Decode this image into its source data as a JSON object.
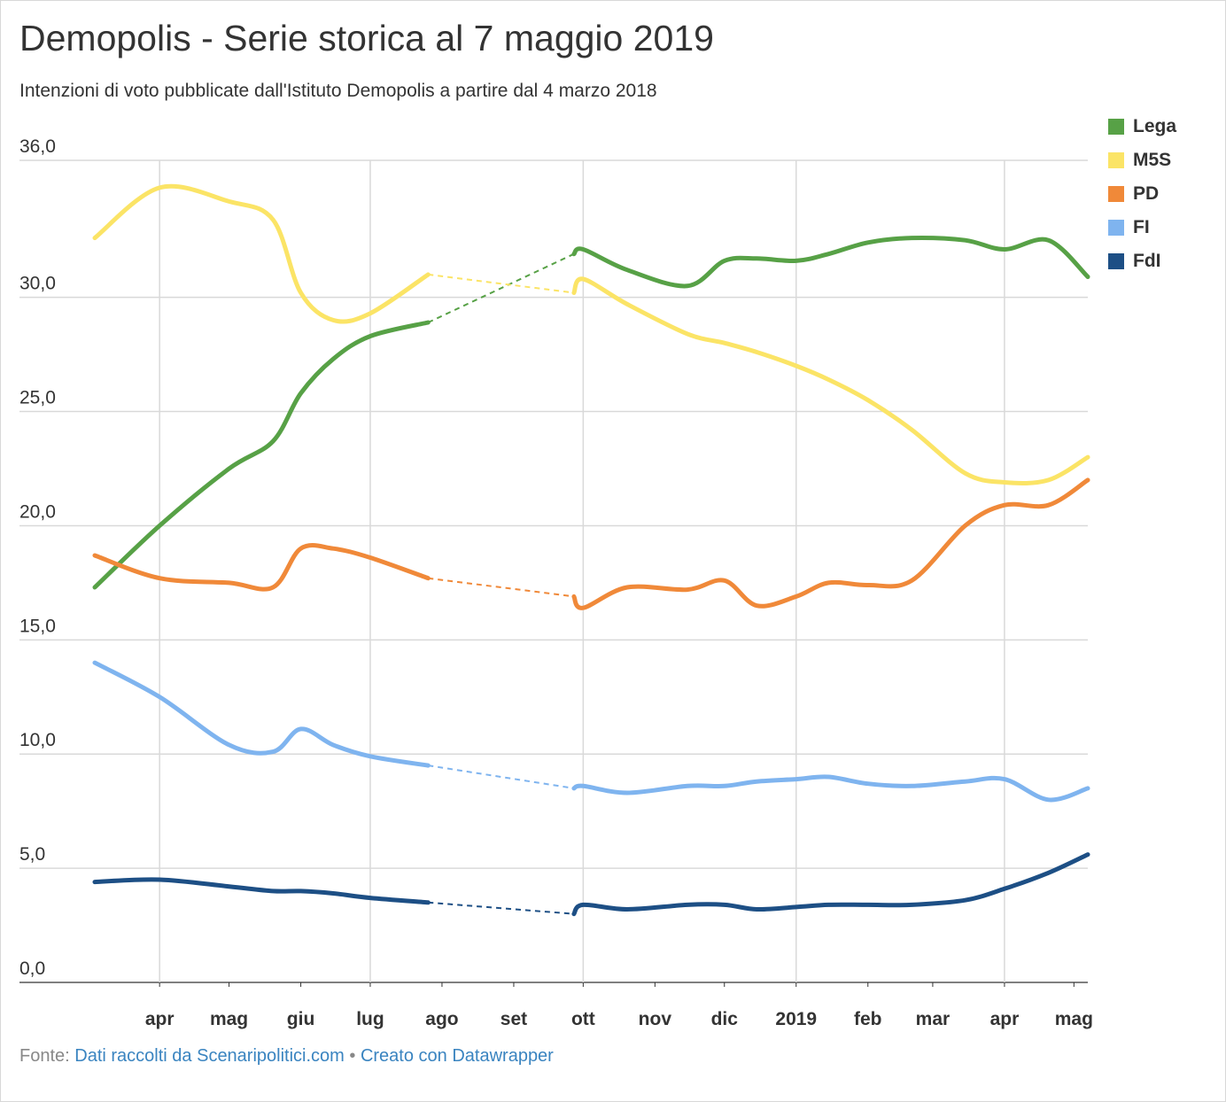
{
  "title": "Demopolis - Serie storica al 7 maggio 2019",
  "subtitle": "Intenzioni di voto pubblicate dall'Istituto Demopolis a partire dal 4 marzo 2018",
  "footer": {
    "prefix": "Fonte: ",
    "source": "Dati raccolti da Scenaripolitici.com",
    "separator": " • ",
    "credit": "Creato con Datawrapper"
  },
  "chart_data": {
    "type": "line",
    "title": "Demopolis - Serie storica al 7 maggio 2019",
    "subtitle": "Intenzioni di voto pubblicate dall'Istituto Demopolis a partire dal 4 marzo 2018",
    "xlabel": "",
    "ylabel": "",
    "ylim": [
      0,
      36
    ],
    "yticks": [
      "0,0",
      "5,0",
      "10,0",
      "15,0",
      "20,0",
      "25,0",
      "30,0",
      "36,0"
    ],
    "ytick_values": [
      0,
      5,
      10,
      15,
      20,
      25,
      30,
      36
    ],
    "xlim": [
      "2018-03-04",
      "2019-05-07"
    ],
    "xticks": [
      {
        "date": "2018-04-01",
        "label": "apr",
        "gridline": true
      },
      {
        "date": "2018-05-01",
        "label": "mag",
        "gridline": false
      },
      {
        "date": "2018-06-01",
        "label": "giu",
        "gridline": false
      },
      {
        "date": "2018-07-01",
        "label": "lug",
        "gridline": true
      },
      {
        "date": "2018-08-01",
        "label": "ago",
        "gridline": false
      },
      {
        "date": "2018-09-01",
        "label": "set",
        "gridline": false
      },
      {
        "date": "2018-10-01",
        "label": "ott",
        "gridline": true
      },
      {
        "date": "2018-11-01",
        "label": "nov",
        "gridline": false
      },
      {
        "date": "2018-12-01",
        "label": "dic",
        "gridline": false
      },
      {
        "date": "2019-01-01",
        "label": "2019",
        "gridline": true
      },
      {
        "date": "2019-02-01",
        "label": "feb",
        "gridline": false
      },
      {
        "date": "2019-03-01",
        "label": "mar",
        "gridline": false
      },
      {
        "date": "2019-04-01",
        "label": "apr",
        "gridline": true
      },
      {
        "date": "2019-05-01",
        "label": "mag",
        "gridline": false
      }
    ],
    "legend_position": "top-right",
    "grid": true,
    "gap": {
      "from": "2018-07-26",
      "to": "2018-09-27"
    },
    "series": [
      {
        "name": "Lega",
        "color": "#57a146",
        "points": [
          [
            "2018-03-04",
            17.3
          ],
          [
            "2018-04-01",
            20.0
          ],
          [
            "2018-05-01",
            22.5
          ],
          [
            "2018-05-20",
            23.7
          ],
          [
            "2018-06-01",
            25.8
          ],
          [
            "2018-06-15",
            27.3
          ],
          [
            "2018-07-01",
            28.3
          ],
          [
            "2018-07-26",
            28.9
          ],
          [
            "2018-09-27",
            31.9
          ],
          [
            "2018-10-01",
            32.1
          ],
          [
            "2018-10-20",
            31.2
          ],
          [
            "2018-11-15",
            30.5
          ],
          [
            "2018-12-01",
            31.6
          ],
          [
            "2018-12-15",
            31.7
          ],
          [
            "2019-01-01",
            31.6
          ],
          [
            "2019-01-15",
            31.9
          ],
          [
            "2019-02-01",
            32.4
          ],
          [
            "2019-02-20",
            32.6
          ],
          [
            "2019-03-15",
            32.5
          ],
          [
            "2019-04-01",
            32.1
          ],
          [
            "2019-04-20",
            32.5
          ],
          [
            "2019-05-07",
            30.9
          ]
        ]
      },
      {
        "name": "M5S",
        "color": "#fbe466",
        "points": [
          [
            "2018-03-04",
            32.6
          ],
          [
            "2018-04-01",
            34.8
          ],
          [
            "2018-05-01",
            34.2
          ],
          [
            "2018-05-20",
            33.4
          ],
          [
            "2018-06-01",
            30.2
          ],
          [
            "2018-06-15",
            29.0
          ],
          [
            "2018-07-01",
            29.3
          ],
          [
            "2018-07-26",
            31.0
          ],
          [
            "2018-09-27",
            30.2
          ],
          [
            "2018-10-01",
            30.8
          ],
          [
            "2018-10-20",
            29.7
          ],
          [
            "2018-11-15",
            28.4
          ],
          [
            "2018-12-01",
            28.0
          ],
          [
            "2018-12-15",
            27.6
          ],
          [
            "2019-01-01",
            27.0
          ],
          [
            "2019-01-15",
            26.4
          ],
          [
            "2019-02-01",
            25.5
          ],
          [
            "2019-02-20",
            24.2
          ],
          [
            "2019-03-15",
            22.3
          ],
          [
            "2019-04-01",
            21.9
          ],
          [
            "2019-04-20",
            22.0
          ],
          [
            "2019-05-07",
            23.0
          ]
        ]
      },
      {
        "name": "PD",
        "color": "#f08939",
        "points": [
          [
            "2018-03-04",
            18.7
          ],
          [
            "2018-04-01",
            17.7
          ],
          [
            "2018-05-01",
            17.5
          ],
          [
            "2018-05-20",
            17.3
          ],
          [
            "2018-06-01",
            19.0
          ],
          [
            "2018-06-15",
            19.0
          ],
          [
            "2018-07-01",
            18.6
          ],
          [
            "2018-07-26",
            17.7
          ],
          [
            "2018-09-27",
            16.9
          ],
          [
            "2018-10-01",
            16.4
          ],
          [
            "2018-10-20",
            17.3
          ],
          [
            "2018-11-15",
            17.2
          ],
          [
            "2018-12-01",
            17.6
          ],
          [
            "2018-12-15",
            16.5
          ],
          [
            "2019-01-01",
            16.9
          ],
          [
            "2019-01-15",
            17.5
          ],
          [
            "2019-02-01",
            17.4
          ],
          [
            "2019-02-20",
            17.6
          ],
          [
            "2019-03-15",
            20.0
          ],
          [
            "2019-04-01",
            20.9
          ],
          [
            "2019-04-20",
            20.9
          ],
          [
            "2019-05-07",
            22.0
          ]
        ]
      },
      {
        "name": "FI",
        "color": "#7fb4ef",
        "points": [
          [
            "2018-03-04",
            14.0
          ],
          [
            "2018-04-01",
            12.5
          ],
          [
            "2018-05-01",
            10.4
          ],
          [
            "2018-05-20",
            10.1
          ],
          [
            "2018-06-01",
            11.1
          ],
          [
            "2018-06-15",
            10.4
          ],
          [
            "2018-07-01",
            9.9
          ],
          [
            "2018-07-26",
            9.5
          ],
          [
            "2018-09-27",
            8.5
          ],
          [
            "2018-10-01",
            8.6
          ],
          [
            "2018-10-20",
            8.3
          ],
          [
            "2018-11-15",
            8.6
          ],
          [
            "2018-12-01",
            8.6
          ],
          [
            "2018-12-15",
            8.8
          ],
          [
            "2019-01-01",
            8.9
          ],
          [
            "2019-01-15",
            9.0
          ],
          [
            "2019-02-01",
            8.7
          ],
          [
            "2019-02-20",
            8.6
          ],
          [
            "2019-03-15",
            8.8
          ],
          [
            "2019-04-01",
            8.9
          ],
          [
            "2019-04-20",
            8.0
          ],
          [
            "2019-05-07",
            8.5
          ]
        ]
      },
      {
        "name": "FdI",
        "color": "#1d4f85",
        "points": [
          [
            "2018-03-04",
            4.4
          ],
          [
            "2018-04-01",
            4.5
          ],
          [
            "2018-05-01",
            4.2
          ],
          [
            "2018-05-20",
            4.0
          ],
          [
            "2018-06-01",
            4.0
          ],
          [
            "2018-06-15",
            3.9
          ],
          [
            "2018-07-01",
            3.7
          ],
          [
            "2018-07-26",
            3.5
          ],
          [
            "2018-09-27",
            3.0
          ],
          [
            "2018-10-01",
            3.4
          ],
          [
            "2018-10-20",
            3.2
          ],
          [
            "2018-11-15",
            3.4
          ],
          [
            "2018-12-01",
            3.4
          ],
          [
            "2018-12-15",
            3.2
          ],
          [
            "2019-01-01",
            3.3
          ],
          [
            "2019-01-15",
            3.4
          ],
          [
            "2019-02-01",
            3.4
          ],
          [
            "2019-02-20",
            3.4
          ],
          [
            "2019-03-15",
            3.6
          ],
          [
            "2019-04-01",
            4.1
          ],
          [
            "2019-04-20",
            4.8
          ],
          [
            "2019-05-07",
            5.6
          ]
        ]
      }
    ]
  }
}
